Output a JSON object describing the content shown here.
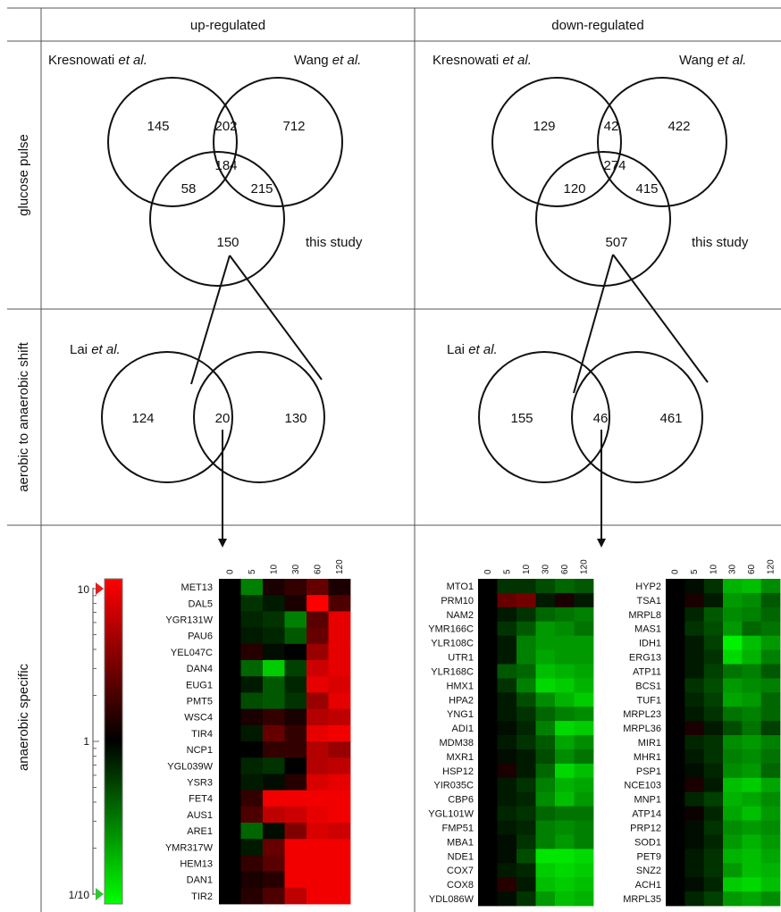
{
  "columns": [
    "up-regulated",
    "down-regulated"
  ],
  "rows": [
    "glucose pulse",
    "aerobic to anaerobic shift",
    "anaerobic specific"
  ],
  "venn3": [
    {
      "name": "up",
      "labels": {
        "a_pre": "Kresnowati ",
        "a_ital": "et al.",
        "b_pre": "Wang ",
        "b_ital": "et al.",
        "c": "this study"
      },
      "regions": {
        "a_only": "145",
        "ab": "202",
        "b_only": "712",
        "ac": "58",
        "abc": "184",
        "bc": "215",
        "c_only": "150"
      }
    },
    {
      "name": "down",
      "labels": {
        "a_pre": "Kresnowati ",
        "a_ital": "et al.",
        "b_pre": "Wang ",
        "b_ital": "et al.",
        "c": "this study"
      },
      "regions": {
        "a_only": "129",
        "ab": "42",
        "b_only": "422",
        "ac": "120",
        "abc": "274",
        "bc": "415",
        "c_only": "507"
      }
    }
  ],
  "venn2": [
    {
      "name": "up",
      "label_pre": "Lai ",
      "label_ital": "et al.",
      "left": "124",
      "middle": "20",
      "right": "130"
    },
    {
      "name": "down",
      "label_pre": "Lai ",
      "label_ital": "et al.",
      "left": "155",
      "middle": "46",
      "right": "461"
    }
  ],
  "colors": {
    "up": "#ff0000",
    "down": "#00ff00",
    "mid": "#000000",
    "line": "#111111",
    "grid": "#555555"
  },
  "chart_data": {
    "type": "heatmap",
    "x": [
      "0",
      "5",
      "10",
      "30",
      "60",
      "120"
    ],
    "color_scale": {
      "top": "10",
      "middle": "1",
      "bottom": "1/10"
    },
    "panels": [
      {
        "name": "anaerobic-specific-up",
        "rows": [
          {
            "gene": "MET13",
            "v": [
              0,
              -0.5,
              0.1,
              0.2,
              0.4,
              0.1
            ]
          },
          {
            "gene": "DAL5",
            "v": [
              0,
              -0.2,
              -0.1,
              0.1,
              1.0,
              0.3
            ]
          },
          {
            "gene": "YGR131W",
            "v": [
              0,
              -0.15,
              -0.2,
              -0.5,
              0.35,
              0.9
            ]
          },
          {
            "gene": "PAU6",
            "v": [
              0,
              -0.1,
              -0.15,
              -0.35,
              0.4,
              0.9
            ]
          },
          {
            "gene": "YEL047C",
            "v": [
              0,
              0.15,
              -0.05,
              0.0,
              0.6,
              0.9
            ]
          },
          {
            "gene": "DAN4",
            "v": [
              0,
              -0.4,
              -0.8,
              -0.25,
              0.8,
              0.9
            ]
          },
          {
            "gene": "EUG1",
            "v": [
              0,
              -0.1,
              -0.35,
              -0.15,
              0.9,
              0.85
            ]
          },
          {
            "gene": "PMT5",
            "v": [
              0,
              -0.3,
              -0.35,
              -0.2,
              0.6,
              0.9
            ]
          },
          {
            "gene": "WSC4",
            "v": [
              0,
              0.1,
              0.2,
              0.1,
              0.7,
              0.75
            ]
          },
          {
            "gene": "TIR4",
            "v": [
              0,
              -0.1,
              0.4,
              0.2,
              0.9,
              0.95
            ]
          },
          {
            "gene": "NCP1",
            "v": [
              0,
              0.0,
              0.2,
              0.2,
              0.7,
              0.6
            ]
          },
          {
            "gene": "YGL039W",
            "v": [
              0,
              -0.15,
              -0.2,
              0.0,
              0.7,
              0.75
            ]
          },
          {
            "gene": "YSR3",
            "v": [
              0,
              -0.1,
              -0.05,
              0.15,
              0.85,
              0.9
            ]
          },
          {
            "gene": "FET4",
            "v": [
              0,
              0.2,
              0.95,
              0.95,
              0.95,
              0.95
            ]
          },
          {
            "gene": "AUS1",
            "v": [
              0,
              0.3,
              0.75,
              0.8,
              0.9,
              0.95
            ]
          },
          {
            "gene": "ARE1",
            "v": [
              0,
              -0.4,
              -0.05,
              0.5,
              0.85,
              0.8
            ]
          },
          {
            "gene": "YMR317W",
            "v": [
              0,
              -0.1,
              0.4,
              0.95,
              0.95,
              0.95
            ]
          },
          {
            "gene": "HEM13",
            "v": [
              0,
              0.2,
              0.35,
              0.95,
              0.95,
              0.95
            ]
          },
          {
            "gene": "DAN1",
            "v": [
              0,
              0.1,
              0.15,
              0.95,
              0.95,
              0.95
            ]
          },
          {
            "gene": "TIR2",
            "v": [
              0,
              0.15,
              0.3,
              0.75,
              0.95,
              0.95
            ]
          }
        ]
      },
      {
        "name": "anaerobic-specific-down-1",
        "rows": [
          {
            "gene": "MTO1",
            "v": [
              0,
              -0.2,
              -0.2,
              -0.3,
              -0.4,
              -0.35
            ]
          },
          {
            "gene": "PRM10",
            "v": [
              0,
              0.4,
              0.45,
              -0.1,
              0.1,
              -0.1
            ]
          },
          {
            "gene": "NAM2",
            "v": [
              0,
              -0.1,
              -0.2,
              -0.4,
              -0.45,
              -0.5
            ]
          },
          {
            "gene": "YMR166C",
            "v": [
              0,
              -0.2,
              -0.35,
              -0.6,
              -0.55,
              -0.45
            ]
          },
          {
            "gene": "YLR108C",
            "v": [
              0,
              -0.1,
              -0.5,
              -0.6,
              -0.6,
              -0.6
            ]
          },
          {
            "gene": "UTR1",
            "v": [
              0,
              -0.1,
              -0.5,
              -0.65,
              -0.6,
              -0.6
            ]
          },
          {
            "gene": "YLR168C",
            "v": [
              0,
              -0.35,
              -0.4,
              -0.75,
              -0.7,
              -0.65
            ]
          },
          {
            "gene": "HMX1",
            "v": [
              0,
              -0.2,
              -0.5,
              -0.85,
              -0.8,
              -0.7
            ]
          },
          {
            "gene": "HPA2",
            "v": [
              0,
              -0.1,
              -0.3,
              -0.55,
              -0.7,
              -0.8
            ]
          },
          {
            "gene": "YNG1",
            "v": [
              0,
              -0.1,
              -0.2,
              -0.4,
              -0.5,
              -0.55
            ]
          },
          {
            "gene": "ADI1",
            "v": [
              0,
              -0.05,
              -0.15,
              -0.5,
              -0.85,
              -0.8
            ]
          },
          {
            "gene": "MDM38",
            "v": [
              0,
              -0.1,
              -0.2,
              -0.35,
              -0.65,
              -0.55
            ]
          },
          {
            "gene": "MXR1",
            "v": [
              0,
              -0.05,
              -0.1,
              -0.3,
              -0.55,
              -0.45
            ]
          },
          {
            "gene": "HSP12",
            "v": [
              0,
              0.1,
              -0.1,
              -0.4,
              -0.85,
              -0.75
            ]
          },
          {
            "gene": "YIR035C",
            "v": [
              0,
              -0.1,
              -0.2,
              -0.5,
              -0.7,
              -0.65
            ]
          },
          {
            "gene": "CBP6",
            "v": [
              0,
              -0.1,
              -0.15,
              -0.55,
              -0.75,
              -0.6
            ]
          },
          {
            "gene": "YGL101W",
            "v": [
              0,
              -0.15,
              -0.2,
              -0.4,
              -0.45,
              -0.45
            ]
          },
          {
            "gene": "FMP51",
            "v": [
              0,
              -0.1,
              -0.15,
              -0.5,
              -0.55,
              -0.5
            ]
          },
          {
            "gene": "MBA1",
            "v": [
              0,
              -0.05,
              -0.2,
              -0.5,
              -0.6,
              -0.5
            ]
          },
          {
            "gene": "NDE1",
            "v": [
              0,
              -0.05,
              -0.3,
              -0.9,
              -0.9,
              -0.85
            ]
          },
          {
            "gene": "COX7",
            "v": [
              0,
              -0.1,
              -0.15,
              -0.8,
              -0.85,
              -0.8
            ]
          },
          {
            "gene": "COX8",
            "v": [
              0,
              0.15,
              -0.1,
              -0.75,
              -0.8,
              -0.75
            ]
          },
          {
            "gene": "YDL086W",
            "v": [
              0,
              -0.05,
              -0.2,
              -0.6,
              -0.75,
              -0.7
            ]
          }
        ]
      },
      {
        "name": "anaerobic-specific-down-2",
        "rows": [
          {
            "gene": "HYP2",
            "v": [
              0,
              -0.05,
              -0.2,
              -0.7,
              -0.75,
              -0.55
            ]
          },
          {
            "gene": "TSA1",
            "v": [
              0,
              0.1,
              -0.1,
              -0.6,
              -0.55,
              -0.35
            ]
          },
          {
            "gene": "MRPL8",
            "v": [
              0,
              -0.15,
              -0.35,
              -0.55,
              -0.5,
              -0.4
            ]
          },
          {
            "gene": "MAS1",
            "v": [
              0,
              -0.2,
              -0.3,
              -0.6,
              -0.4,
              -0.45
            ]
          },
          {
            "gene": "IDH1",
            "v": [
              0,
              -0.1,
              -0.25,
              -0.95,
              -0.75,
              -0.6
            ]
          },
          {
            "gene": "ERG13",
            "v": [
              0,
              -0.1,
              -0.2,
              -0.85,
              -0.7,
              -0.5
            ]
          },
          {
            "gene": "ATP11",
            "v": [
              0,
              -0.1,
              -0.25,
              -0.45,
              -0.5,
              -0.35
            ]
          },
          {
            "gene": "BCS1",
            "v": [
              0,
              -0.2,
              -0.3,
              -0.6,
              -0.55,
              -0.5
            ]
          },
          {
            "gene": "TUF1",
            "v": [
              0,
              -0.15,
              -0.25,
              -0.65,
              -0.6,
              -0.4
            ]
          },
          {
            "gene": "MRPL23",
            "v": [
              0,
              -0.1,
              -0.2,
              -0.45,
              -0.5,
              -0.4
            ]
          },
          {
            "gene": "MRPL36",
            "v": [
              0,
              0.1,
              -0.1,
              -0.3,
              -0.45,
              -0.25
            ]
          },
          {
            "gene": "MIR1",
            "v": [
              0,
              -0.15,
              -0.2,
              -0.55,
              -0.6,
              -0.5
            ]
          },
          {
            "gene": "MHR1",
            "v": [
              0,
              -0.1,
              -0.2,
              -0.5,
              -0.55,
              -0.45
            ]
          },
          {
            "gene": "PSP1",
            "v": [
              0,
              -0.05,
              -0.15,
              -0.55,
              -0.6,
              -0.4
            ]
          },
          {
            "gene": "NCE103",
            "v": [
              0,
              0.1,
              -0.1,
              -0.75,
              -0.8,
              -0.65
            ]
          },
          {
            "gene": "MNP1",
            "v": [
              0,
              -0.15,
              -0.25,
              -0.7,
              -0.65,
              -0.55
            ]
          },
          {
            "gene": "ATP14",
            "v": [
              0,
              0.05,
              -0.15,
              -0.65,
              -0.75,
              -0.6
            ]
          },
          {
            "gene": "PRP12",
            "v": [
              0,
              -0.05,
              -0.2,
              -0.55,
              -0.6,
              -0.55
            ]
          },
          {
            "gene": "SOD1",
            "v": [
              0,
              -0.05,
              -0.15,
              -0.6,
              -0.7,
              -0.6
            ]
          },
          {
            "gene": "PET9",
            "v": [
              0,
              -0.1,
              -0.2,
              -0.7,
              -0.75,
              -0.65
            ]
          },
          {
            "gene": "SNZ2",
            "v": [
              0,
              -0.1,
              -0.2,
              -0.6,
              -0.75,
              -0.7
            ]
          },
          {
            "gene": "ACH1",
            "v": [
              0,
              -0.05,
              -0.15,
              -0.8,
              -0.85,
              -0.75
            ]
          },
          {
            "gene": "MRPL35",
            "v": [
              0,
              -0.15,
              -0.25,
              -0.6,
              -0.65,
              -0.55
            ]
          }
        ]
      }
    ]
  }
}
